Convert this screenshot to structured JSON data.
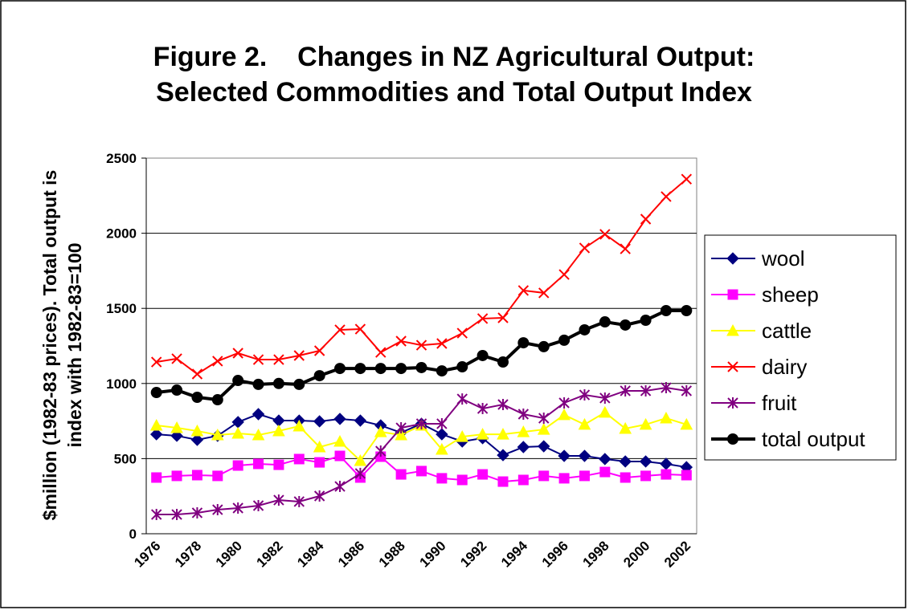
{
  "chart_data": {
    "type": "line",
    "title": [
      "Figure 2.    Changes in NZ Agricultural Output:",
      "Selected Commodities and Total Output Index"
    ],
    "y_label": [
      "$million (1982-83 prices). Total output is",
      "index with 1982-83=100"
    ],
    "categories": [
      "1976",
      null,
      "1978",
      null,
      "1980",
      null,
      "1982",
      null,
      "1984",
      null,
      "1986",
      null,
      "1988",
      null,
      "1990",
      null,
      "1992",
      null,
      "1994",
      null,
      "1996",
      null,
      "1998",
      null,
      "2000",
      null,
      "2002"
    ],
    "ylim": [
      0,
      2500
    ],
    "yticks": [
      0,
      500,
      1000,
      1500,
      2000,
      2500
    ],
    "grid": true,
    "legend": "right",
    "series": [
      {
        "name": "wool",
        "color": "#000080",
        "marker": "diamond",
        "values": [
          662,
          652,
          625,
          652,
          743,
          796,
          753,
          753,
          748,
          764,
          753,
          721,
          673,
          732,
          662,
          614,
          636,
          523,
          577,
          582,
          518,
          518,
          497,
          481,
          481,
          465,
          443
        ]
      },
      {
        "name": "sheep",
        "color": "#ff00ff",
        "marker": "square",
        "values": [
          374,
          385,
          390,
          385,
          454,
          465,
          459,
          497,
          475,
          518,
          374,
          513,
          395,
          417,
          369,
          358,
          395,
          347,
          358,
          385,
          369,
          385,
          411,
          374,
          385,
          395,
          390
        ]
      },
      {
        "name": "cattle",
        "color": "#ffff00",
        "marker": "triangle",
        "values": [
          721,
          705,
          684,
          657,
          668,
          657,
          684,
          716,
          577,
          614,
          486,
          678,
          657,
          721,
          561,
          646,
          662,
          662,
          678,
          694,
          791,
          727,
          807,
          700,
          727,
          769,
          727
        ]
      },
      {
        "name": "dairy",
        "color": "#ff0000",
        "marker": "x",
        "values": [
          1143,
          1165,
          1063,
          1149,
          1202,
          1159,
          1159,
          1186,
          1218,
          1357,
          1362,
          1207,
          1282,
          1255,
          1266,
          1335,
          1432,
          1437,
          1619,
          1603,
          1725,
          1902,
          1993,
          1896,
          2094,
          2244,
          2360
        ]
      },
      {
        "name": "fruit",
        "color": "#800080",
        "marker": "star",
        "values": [
          128,
          128,
          139,
          160,
          171,
          187,
          224,
          214,
          251,
          315,
          401,
          550,
          705,
          732,
          732,
          897,
          833,
          860,
          796,
          769,
          871,
          924,
          903,
          951,
          951,
          972,
          951
        ]
      },
      {
        "name": "total output",
        "color": "#000000",
        "marker": "circle",
        "values": [
          940,
          956,
          908,
          892,
          1020,
          994,
          1000,
          994,
          1052,
          1100,
          1100,
          1100,
          1100,
          1106,
          1084,
          1111,
          1186,
          1143,
          1271,
          1245,
          1288,
          1357,
          1410,
          1389,
          1421,
          1485,
          1485
        ]
      }
    ]
  }
}
